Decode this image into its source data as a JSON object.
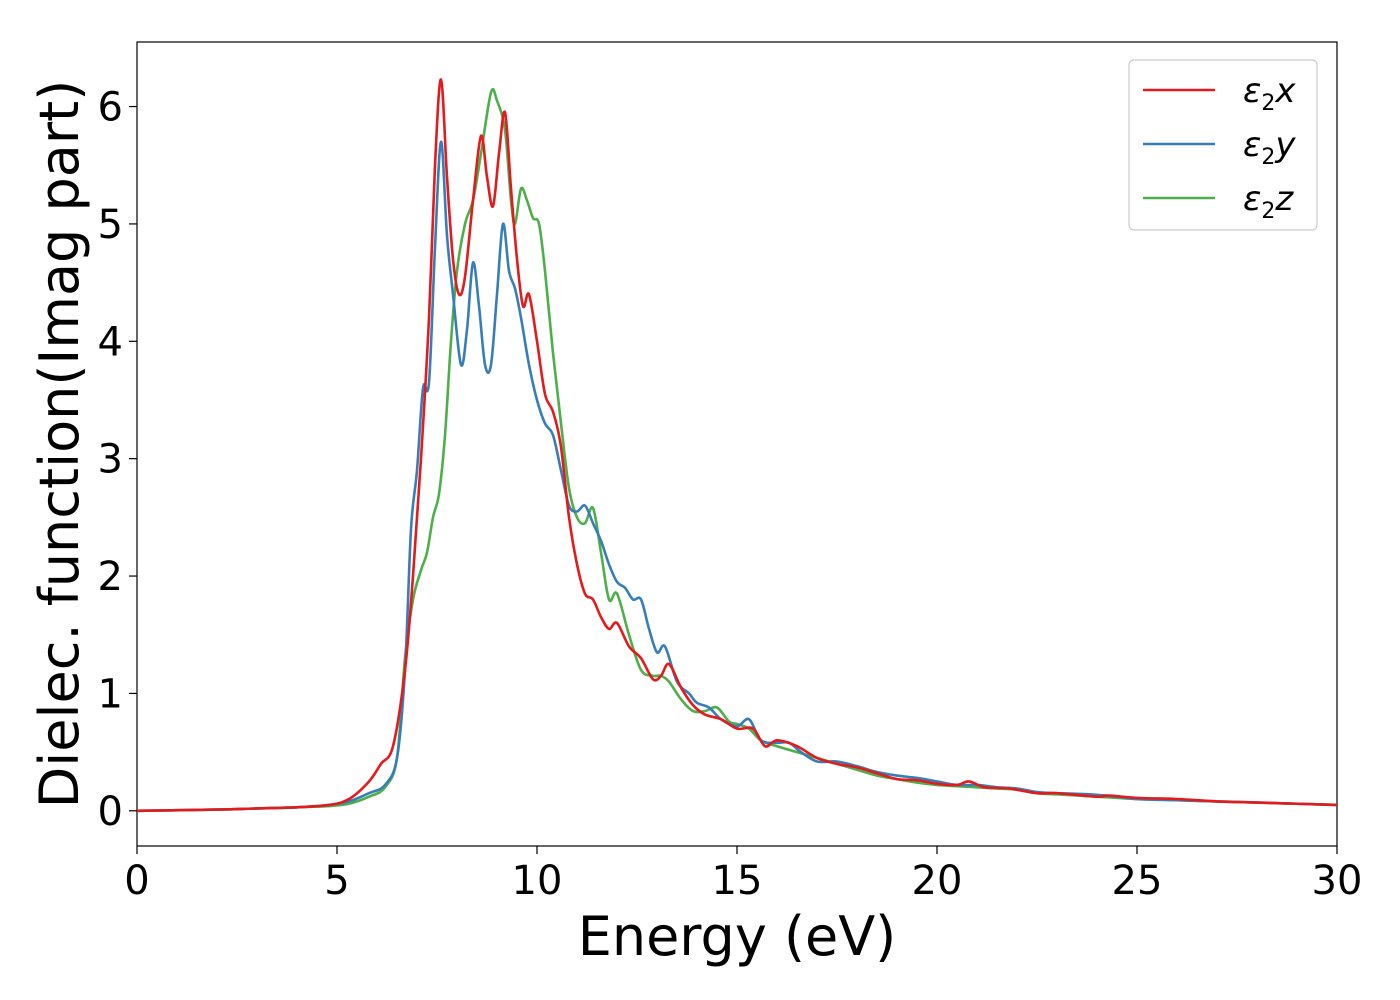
{
  "chart_data": {
    "type": "line",
    "xlabel": "Energy (eV)",
    "ylabel": "Dielec. function(Imag part)",
    "xlim": [
      0,
      30
    ],
    "ylim": [
      -0.3,
      6.55
    ],
    "xticks": [
      0,
      5,
      10,
      15,
      20,
      25,
      30
    ],
    "yticks": [
      0,
      1,
      2,
      3,
      4,
      5,
      6
    ],
    "grid": false,
    "legend_position": "top-right",
    "series": [
      {
        "name": "ε2x",
        "legend_main": "ε",
        "legend_sub": "2",
        "legend_var": "x",
        "color": "#e41a1c",
        "points": [
          [
            0,
            0.0
          ],
          [
            2,
            0.01
          ],
          [
            3,
            0.02
          ],
          [
            4,
            0.03
          ],
          [
            4.8,
            0.05
          ],
          [
            5.3,
            0.1
          ],
          [
            5.8,
            0.25
          ],
          [
            6.1,
            0.4
          ],
          [
            6.4,
            0.55
          ],
          [
            6.7,
            1.2
          ],
          [
            6.9,
            2.0
          ],
          [
            7.1,
            3.0
          ],
          [
            7.3,
            4.2
          ],
          [
            7.45,
            5.5
          ],
          [
            7.6,
            6.23
          ],
          [
            7.75,
            5.4
          ],
          [
            7.9,
            4.7
          ],
          [
            8.05,
            4.4
          ],
          [
            8.2,
            4.55
          ],
          [
            8.4,
            5.2
          ],
          [
            8.6,
            5.75
          ],
          [
            8.75,
            5.4
          ],
          [
            8.9,
            5.15
          ],
          [
            9.05,
            5.6
          ],
          [
            9.2,
            5.95
          ],
          [
            9.35,
            5.3
          ],
          [
            9.5,
            4.7
          ],
          [
            9.65,
            4.3
          ],
          [
            9.8,
            4.4
          ],
          [
            10.0,
            4.0
          ],
          [
            10.2,
            3.55
          ],
          [
            10.4,
            3.4
          ],
          [
            10.6,
            3.1
          ],
          [
            10.8,
            2.5
          ],
          [
            11.0,
            2.1
          ],
          [
            11.2,
            1.85
          ],
          [
            11.4,
            1.8
          ],
          [
            11.6,
            1.65
          ],
          [
            11.8,
            1.55
          ],
          [
            12.0,
            1.6
          ],
          [
            12.3,
            1.4
          ],
          [
            12.6,
            1.3
          ],
          [
            12.9,
            1.12
          ],
          [
            13.1,
            1.15
          ],
          [
            13.3,
            1.25
          ],
          [
            13.6,
            1.05
          ],
          [
            13.9,
            0.9
          ],
          [
            14.2,
            0.82
          ],
          [
            14.6,
            0.78
          ],
          [
            15.0,
            0.7
          ],
          [
            15.4,
            0.7
          ],
          [
            15.7,
            0.55
          ],
          [
            16.0,
            0.6
          ],
          [
            16.5,
            0.55
          ],
          [
            17.0,
            0.45
          ],
          [
            17.5,
            0.4
          ],
          [
            18.0,
            0.37
          ],
          [
            18.5,
            0.32
          ],
          [
            19.0,
            0.27
          ],
          [
            19.5,
            0.26
          ],
          [
            20.0,
            0.23
          ],
          [
            20.5,
            0.22
          ],
          [
            20.8,
            0.25
          ],
          [
            21.2,
            0.2
          ],
          [
            21.8,
            0.19
          ],
          [
            22.5,
            0.15
          ],
          [
            23.0,
            0.15
          ],
          [
            24.0,
            0.12
          ],
          [
            24.3,
            0.13
          ],
          [
            25.0,
            0.11
          ],
          [
            26.0,
            0.1
          ],
          [
            27.0,
            0.08
          ],
          [
            28.0,
            0.07
          ],
          [
            29.0,
            0.06
          ],
          [
            30.0,
            0.05
          ]
        ]
      },
      {
        "name": "ε2y",
        "legend_main": "ε",
        "legend_sub": "2",
        "legend_var": "y",
        "color": "#377eb8",
        "points": [
          [
            0,
            0.0
          ],
          [
            2,
            0.01
          ],
          [
            3,
            0.02
          ],
          [
            4,
            0.03
          ],
          [
            4.8,
            0.05
          ],
          [
            5.3,
            0.08
          ],
          [
            5.8,
            0.15
          ],
          [
            6.2,
            0.22
          ],
          [
            6.5,
            0.45
          ],
          [
            6.7,
            1.2
          ],
          [
            6.85,
            2.4
          ],
          [
            7.0,
            2.9
          ],
          [
            7.15,
            3.6
          ],
          [
            7.3,
            3.65
          ],
          [
            7.45,
            4.8
          ],
          [
            7.6,
            5.7
          ],
          [
            7.75,
            4.9
          ],
          [
            7.9,
            4.4
          ],
          [
            8.1,
            3.8
          ],
          [
            8.25,
            4.1
          ],
          [
            8.4,
            4.67
          ],
          [
            8.55,
            4.3
          ],
          [
            8.7,
            3.8
          ],
          [
            8.85,
            3.8
          ],
          [
            9.0,
            4.4
          ],
          [
            9.15,
            5.0
          ],
          [
            9.3,
            4.6
          ],
          [
            9.45,
            4.45
          ],
          [
            9.6,
            4.2
          ],
          [
            9.8,
            3.8
          ],
          [
            10.0,
            3.5
          ],
          [
            10.2,
            3.3
          ],
          [
            10.4,
            3.2
          ],
          [
            10.6,
            2.9
          ],
          [
            10.8,
            2.6
          ],
          [
            11.0,
            2.55
          ],
          [
            11.2,
            2.6
          ],
          [
            11.4,
            2.45
          ],
          [
            11.6,
            2.3
          ],
          [
            11.8,
            2.1
          ],
          [
            12.0,
            1.95
          ],
          [
            12.2,
            1.9
          ],
          [
            12.4,
            1.8
          ],
          [
            12.6,
            1.8
          ],
          [
            12.8,
            1.55
          ],
          [
            13.0,
            1.35
          ],
          [
            13.2,
            1.4
          ],
          [
            13.5,
            1.1
          ],
          [
            13.8,
            1.0
          ],
          [
            14.0,
            0.92
          ],
          [
            14.3,
            0.88
          ],
          [
            14.6,
            0.78
          ],
          [
            15.0,
            0.72
          ],
          [
            15.3,
            0.78
          ],
          [
            15.6,
            0.6
          ],
          [
            16.0,
            0.58
          ],
          [
            16.3,
            0.58
          ],
          [
            16.6,
            0.5
          ],
          [
            17.0,
            0.42
          ],
          [
            17.5,
            0.42
          ],
          [
            18.0,
            0.38
          ],
          [
            18.5,
            0.33
          ],
          [
            19.0,
            0.3
          ],
          [
            19.5,
            0.28
          ],
          [
            20.0,
            0.25
          ],
          [
            20.5,
            0.22
          ],
          [
            21.0,
            0.22
          ],
          [
            21.5,
            0.2
          ],
          [
            22.0,
            0.19
          ],
          [
            22.5,
            0.16
          ],
          [
            23.0,
            0.15
          ],
          [
            23.8,
            0.14
          ],
          [
            24.5,
            0.12
          ],
          [
            25.0,
            0.1
          ],
          [
            26.0,
            0.09
          ],
          [
            27.0,
            0.08
          ],
          [
            28.0,
            0.07
          ],
          [
            29.0,
            0.06
          ],
          [
            30.0,
            0.05
          ]
        ]
      },
      {
        "name": "ε2z",
        "legend_main": "ε",
        "legend_sub": "2",
        "legend_var": "z",
        "color": "#4daf4a",
        "points": [
          [
            0,
            0.0
          ],
          [
            2,
            0.01
          ],
          [
            3,
            0.02
          ],
          [
            4,
            0.03
          ],
          [
            4.8,
            0.04
          ],
          [
            5.3,
            0.06
          ],
          [
            5.8,
            0.12
          ],
          [
            6.2,
            0.2
          ],
          [
            6.5,
            0.45
          ],
          [
            6.7,
            1.3
          ],
          [
            6.9,
            1.8
          ],
          [
            7.1,
            2.05
          ],
          [
            7.25,
            2.2
          ],
          [
            7.4,
            2.5
          ],
          [
            7.55,
            2.7
          ],
          [
            7.7,
            3.2
          ],
          [
            7.85,
            4.0
          ],
          [
            8.0,
            4.6
          ],
          [
            8.2,
            5.0
          ],
          [
            8.4,
            5.2
          ],
          [
            8.6,
            5.6
          ],
          [
            8.85,
            6.12
          ],
          [
            9.0,
            6.05
          ],
          [
            9.2,
            5.8
          ],
          [
            9.35,
            5.2
          ],
          [
            9.45,
            5.0
          ],
          [
            9.6,
            5.3
          ],
          [
            9.75,
            5.2
          ],
          [
            9.9,
            5.05
          ],
          [
            10.05,
            5.0
          ],
          [
            10.2,
            4.6
          ],
          [
            10.4,
            3.9
          ],
          [
            10.6,
            3.3
          ],
          [
            10.8,
            2.75
          ],
          [
            11.0,
            2.5
          ],
          [
            11.2,
            2.45
          ],
          [
            11.4,
            2.58
          ],
          [
            11.6,
            2.2
          ],
          [
            11.8,
            1.8
          ],
          [
            12.0,
            1.85
          ],
          [
            12.3,
            1.5
          ],
          [
            12.6,
            1.2
          ],
          [
            12.9,
            1.15
          ],
          [
            13.1,
            1.15
          ],
          [
            13.3,
            1.1
          ],
          [
            13.6,
            0.95
          ],
          [
            13.9,
            0.85
          ],
          [
            14.2,
            0.85
          ],
          [
            14.5,
            0.88
          ],
          [
            14.8,
            0.76
          ],
          [
            15.0,
            0.74
          ],
          [
            15.3,
            0.7
          ],
          [
            15.6,
            0.6
          ],
          [
            16.0,
            0.55
          ],
          [
            16.5,
            0.5
          ],
          [
            17.0,
            0.45
          ],
          [
            17.5,
            0.4
          ],
          [
            18.0,
            0.35
          ],
          [
            18.5,
            0.3
          ],
          [
            19.0,
            0.27
          ],
          [
            19.5,
            0.24
          ],
          [
            20.0,
            0.22
          ],
          [
            20.5,
            0.21
          ],
          [
            21.0,
            0.2
          ],
          [
            21.5,
            0.19
          ],
          [
            22.0,
            0.18
          ],
          [
            22.5,
            0.15
          ],
          [
            23.0,
            0.14
          ],
          [
            24.0,
            0.12
          ],
          [
            25.0,
            0.1
          ],
          [
            26.0,
            0.09
          ],
          [
            27.0,
            0.08
          ],
          [
            28.0,
            0.07
          ],
          [
            29.0,
            0.06
          ],
          [
            30.0,
            0.05
          ]
        ]
      }
    ]
  }
}
